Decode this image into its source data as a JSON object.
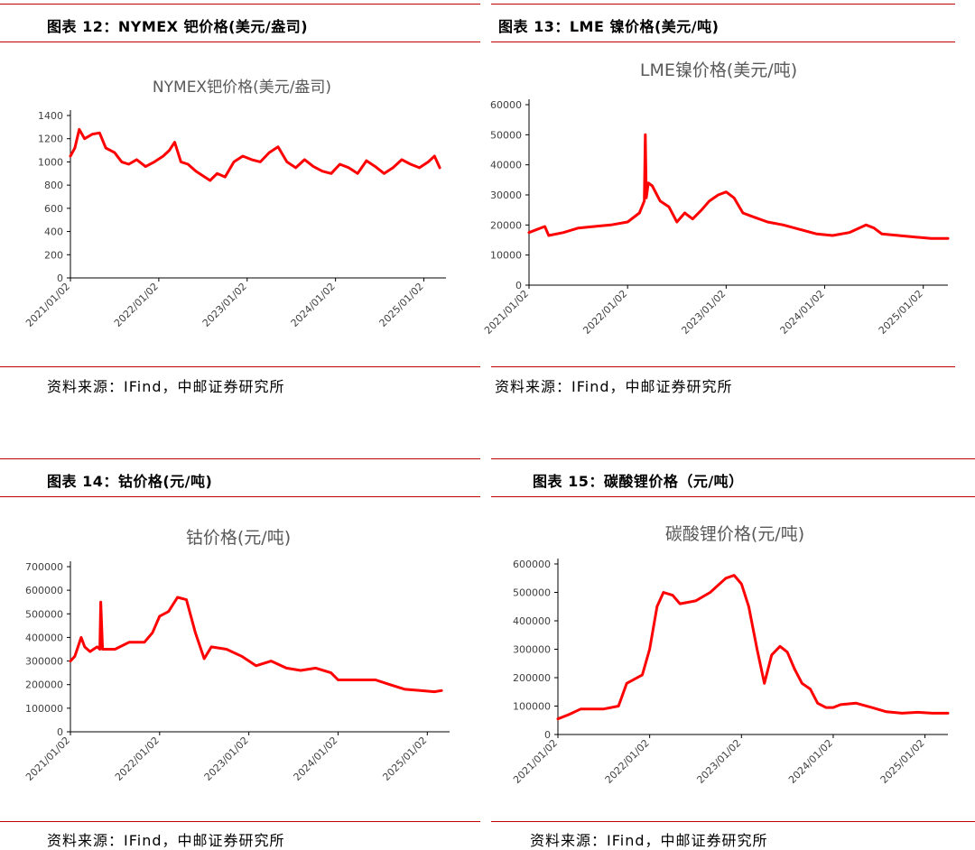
{
  "colors": {
    "rule": "#c00000",
    "series": "#ff0000",
    "axis": "#000000",
    "text": "#404040"
  },
  "panels": [
    {
      "heading": "图表 12：NYMEX 钯价格(美元/盎司)",
      "source": "资料来源：IFind，中邮证券研究所",
      "chart_data": {
        "type": "line",
        "title": "NYMEX钯价格(美元/盎司)",
        "xlabel": "",
        "ylabel": "",
        "x_ticks": [
          "2021/01/02",
          "2022/01/02",
          "2023/01/02",
          "2024/01/02",
          "2025/01/02"
        ],
        "y_ticks": [
          0,
          200,
          400,
          600,
          800,
          1000,
          1200,
          1400
        ],
        "ylim": [
          0,
          1400
        ],
        "series": [
          {
            "x": [
              2021.0,
              2021.05,
              2021.1,
              2021.16,
              2021.25,
              2021.33,
              2021.4,
              2021.5,
              2021.58,
              2021.66,
              2021.75,
              2021.85,
              2021.95,
              2022.05,
              2022.12,
              2022.18,
              2022.25,
              2022.33,
              2022.42,
              2022.5,
              2022.58,
              2022.66,
              2022.75,
              2022.85,
              2022.95,
              2023.05,
              2023.15,
              2023.25,
              2023.35,
              2023.45,
              2023.55,
              2023.65,
              2023.75,
              2023.85,
              2023.95,
              2024.05,
              2024.15,
              2024.25,
              2024.35,
              2024.45,
              2024.55,
              2024.65,
              2024.75,
              2024.85,
              2024.95,
              2025.05,
              2025.12,
              2025.18
            ],
            "y": [
              1050,
              1120,
              1280,
              1200,
              1240,
              1250,
              1120,
              1080,
              1000,
              980,
              1020,
              960,
              1000,
              1050,
              1100,
              1170,
              1000,
              980,
              920,
              880,
              840,
              900,
              870,
              1000,
              1050,
              1020,
              1000,
              1080,
              1130,
              1000,
              950,
              1020,
              960,
              920,
              900,
              980,
              950,
              900,
              1010,
              960,
              900,
              950,
              1020,
              980,
              950,
              1000,
              1050,
              950
            ]
          }
        ]
      }
    },
    {
      "heading": "图表 13：LME 镍价格(美元/吨)",
      "source": "资料来源：IFind，中邮证券研究所",
      "chart_data": {
        "type": "line",
        "title": "LME镍价格(美元/吨)",
        "xlabel": "",
        "ylabel": "",
        "x_ticks": [
          "2021/01/02",
          "2022/01/02",
          "2023/01/02",
          "2024/01/02",
          "2025/01/02"
        ],
        "y_ticks": [
          0,
          10000,
          20000,
          30000,
          40000,
          50000,
          60000
        ],
        "ylim": [
          0,
          60000
        ],
        "series": [
          {
            "x": [
              2021.0,
              2021.08,
              2021.16,
              2021.2,
              2021.35,
              2021.5,
              2021.66,
              2021.83,
              2022.0,
              2022.12,
              2022.17,
              2022.18,
              2022.19,
              2022.21,
              2022.25,
              2022.33,
              2022.42,
              2022.5,
              2022.58,
              2022.66,
              2022.75,
              2022.83,
              2022.92,
              2023.0,
              2023.08,
              2023.17,
              2023.25,
              2023.42,
              2023.58,
              2023.75,
              2023.92,
              2024.08,
              2024.25,
              2024.42,
              2024.5,
              2024.58,
              2024.75,
              2024.92,
              2025.08,
              2025.25
            ],
            "y": [
              17500,
              18500,
              19500,
              16500,
              17500,
              19000,
              19500,
              20000,
              21000,
              24000,
              28000,
              50000,
              29000,
              34000,
              33000,
              28000,
              26000,
              21000,
              24000,
              22000,
              25000,
              28000,
              30000,
              31000,
              29000,
              24000,
              23000,
              21000,
              20000,
              18500,
              17000,
              16500,
              17500,
              20000,
              19000,
              17000,
              16500,
              16000,
              15500,
              15500
            ]
          }
        ]
      }
    },
    {
      "heading": "图表 14：钴价格(元/吨)",
      "source": "资料来源：IFind，中邮证券研究所",
      "chart_data": {
        "type": "line",
        "title": "钴价格(元/吨)",
        "xlabel": "",
        "ylabel": "",
        "x_ticks": [
          "2021/01/02",
          "2022/01/02",
          "2023/01/02",
          "2024/01/02",
          "2025/01/02"
        ],
        "y_ticks": [
          0,
          100000,
          200000,
          300000,
          400000,
          500000,
          600000,
          700000
        ],
        "ylim": [
          0,
          700000
        ],
        "series": [
          {
            "x": [
              2021.0,
              2021.05,
              2021.12,
              2021.16,
              2021.22,
              2021.3,
              2021.33,
              2021.34,
              2021.36,
              2021.5,
              2021.66,
              2021.83,
              2021.92,
              2022.0,
              2022.1,
              2022.2,
              2022.3,
              2022.4,
              2022.5,
              2022.58,
              2022.75,
              2022.92,
              2023.08,
              2023.25,
              2023.42,
              2023.58,
              2023.75,
              2023.92,
              2024.0,
              2024.08,
              2024.25,
              2024.42,
              2024.58,
              2024.75,
              2024.92,
              2025.08,
              2025.16
            ],
            "y": [
              300000,
              320000,
              400000,
              360000,
              340000,
              360000,
              350000,
              550000,
              350000,
              350000,
              380000,
              380000,
              420000,
              490000,
              510000,
              570000,
              560000,
              420000,
              310000,
              360000,
              350000,
              320000,
              280000,
              300000,
              270000,
              260000,
              270000,
              250000,
              220000,
              220000,
              220000,
              220000,
              200000,
              180000,
              175000,
              170000,
              175000
            ]
          }
        ]
      }
    },
    {
      "heading": "图表 15：碳酸锂价格（元/吨）",
      "source": "资料来源：IFind，中邮证券研究所",
      "chart_data": {
        "type": "line",
        "title": "碳酸锂价格(元/吨)",
        "xlabel": "",
        "ylabel": "",
        "x_ticks": [
          "2021/01/02",
          "2022/01/02",
          "2023/01/02",
          "2024/01/02",
          "2025/01/02"
        ],
        "y_ticks": [
          0,
          100000,
          200000,
          300000,
          400000,
          500000,
          600000
        ],
        "ylim": [
          0,
          600000
        ],
        "series": [
          {
            "x": [
              2021.0,
              2021.12,
              2021.25,
              2021.5,
              2021.66,
              2021.75,
              2021.92,
              2022.0,
              2022.08,
              2022.15,
              2022.25,
              2022.33,
              2022.5,
              2022.66,
              2022.83,
              2022.92,
              2023.0,
              2023.08,
              2023.17,
              2023.25,
              2023.33,
              2023.42,
              2023.5,
              2023.58,
              2023.66,
              2023.75,
              2023.83,
              2023.92,
              2024.0,
              2024.08,
              2024.25,
              2024.42,
              2024.58,
              2024.75,
              2024.92,
              2025.08,
              2025.25
            ],
            "y": [
              55000,
              70000,
              90000,
              90000,
              100000,
              180000,
              210000,
              300000,
              450000,
              500000,
              490000,
              460000,
              470000,
              500000,
              550000,
              560000,
              530000,
              450000,
              300000,
              180000,
              280000,
              310000,
              290000,
              230000,
              180000,
              160000,
              110000,
              95000,
              95000,
              105000,
              110000,
              95000,
              80000,
              75000,
              78000,
              75000,
              75000
            ]
          }
        ]
      }
    }
  ]
}
